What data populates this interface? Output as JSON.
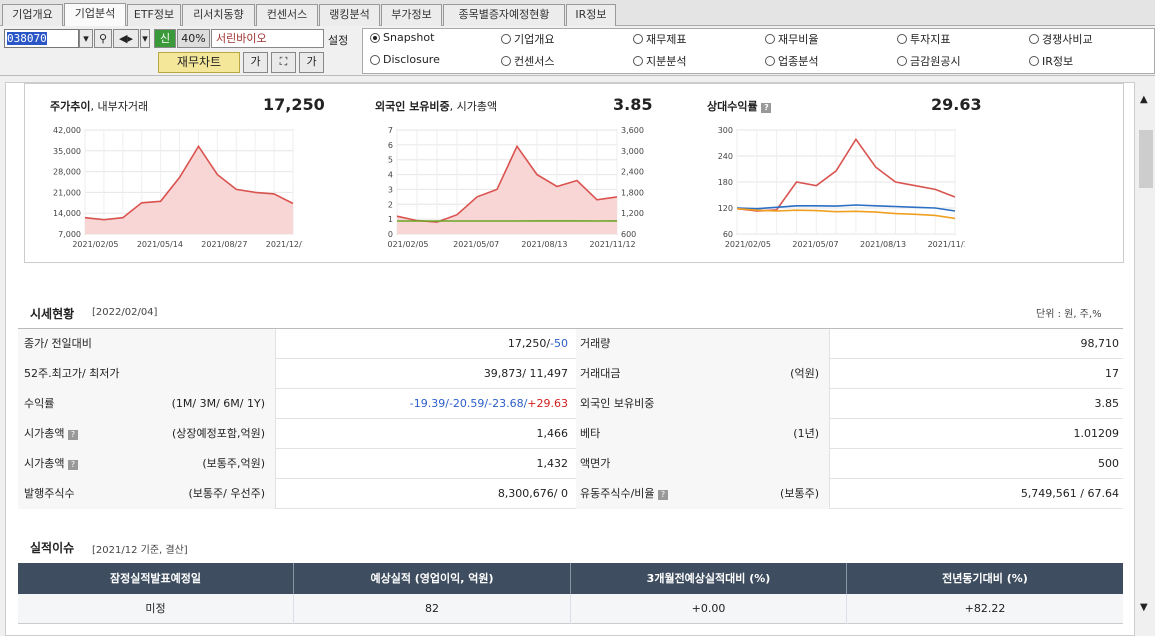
{
  "tabs": [
    "기업개요",
    "기업분석",
    "ETF정보",
    "리서치동향",
    "컨센서스",
    "랭킹분석",
    "부가정보",
    "종목별증자예정현황",
    "IR정보"
  ],
  "toolbar": {
    "code": "038070",
    "sin": "신",
    "percent": "40%",
    "stock_name": "서린바이오",
    "settings": "설정",
    "fin_chart": "재무차트"
  },
  "radios": [
    "Snapshot",
    "기업개요",
    "재무제표",
    "재무비율",
    "투자지표",
    "경쟁사비교",
    "Disclosure",
    "컨센서스",
    "지분분석",
    "업종분석",
    "금감원공시",
    "IR정보"
  ],
  "charts": {
    "price": {
      "title": "주가추이",
      "sub": ", 내부자거래",
      "value": "17,250"
    },
    "foreign": {
      "title": "외국인 보유비중",
      "sub": ", 시가총액",
      "value": "3.85"
    },
    "relative": {
      "title": "상대수익률",
      "value": "29.63"
    }
  },
  "chart_data": [
    {
      "type": "area",
      "title": "주가추이, 내부자거래",
      "x": [
        "2021/02/05",
        "2021/03/05",
        "2021/04/05",
        "2021/05/14",
        "2021/06/14",
        "2021/07/14",
        "2021/08/27",
        "2021/09/27",
        "2021/10/27",
        "2021/12/10",
        "2022/01/10",
        "2022/02/04"
      ],
      "values": [
        12500,
        11800,
        12500,
        17500,
        18000,
        26000,
        36500,
        27000,
        22000,
        21000,
        20500,
        17250
      ],
      "ylim": [
        7000,
        42000
      ],
      "yticks": [
        "42,000",
        "35,000",
        "28,000",
        "21,000",
        "14,000",
        "7,000"
      ],
      "xticks": [
        "2021/02/05",
        "2021/05/14",
        "2021/08/27",
        "2021/12/10"
      ]
    },
    {
      "type": "line",
      "title": "외국인 보유비중, 시가총액",
      "x": [
        "2021/02/05",
        "2021/03/05",
        "2021/04/05",
        "2021/05/07",
        "2021/06/07",
        "2021/07/07",
        "2021/08/13",
        "2021/09/13",
        "2021/10/13",
        "2021/11/12",
        "2021/12/12",
        "2022/02/04"
      ],
      "series": [
        {
          "values": [
            1.2,
            0.9,
            0.8,
            1.3,
            2.5,
            3.0,
            5.9,
            4.0,
            3.2,
            3.6,
            2.3,
            2.5
          ]
        },
        {
          "values": [
            1.5,
            0.8,
            0.9,
            1.1,
            1.3,
            2.0,
            2.1,
            6.0,
            2.5,
            2.4,
            2.0,
            3.85
          ]
        }
      ],
      "ylim": [
        0,
        7
      ],
      "y2lim": [
        600,
        3600
      ],
      "yticks": [
        "7",
        "6",
        "5",
        "4",
        "3",
        "2",
        "1",
        "0"
      ],
      "y2ticks": [
        "3,600",
        "3,000",
        "2,400",
        "1,800",
        "1,200",
        "600"
      ],
      "xticks": [
        "021/02/05",
        "2021/05/07",
        "2021/08/13",
        "2021/11/12"
      ]
    },
    {
      "type": "line",
      "title": "상대수익률",
      "x": [
        "2021/02/05",
        "2021/03/05",
        "2021/04/05",
        "2021/05/07",
        "2021/06/07",
        "2021/07/07",
        "2021/08/13",
        "2021/09/13",
        "2021/10/13",
        "2021/11/12",
        "2021/12/12",
        "2022/02/04"
      ],
      "series": [
        {
          "values": [
            98,
            92,
            95,
            170,
            160,
            200,
            285,
            210,
            170,
            160,
            150,
            129.63
          ]
        },
        {
          "values": [
            100,
            98,
            102,
            106,
            106,
            105,
            108,
            106,
            104,
            102,
            100,
            92
          ]
        },
        {
          "values": [
            98,
            94,
            92,
            94,
            93,
            90,
            91,
            89,
            85,
            83,
            80,
            72
          ]
        }
      ],
      "ylim": [
        30,
        310
      ],
      "yticks": [
        "300",
        "240",
        "180",
        "120",
        "60"
      ],
      "xticks": [
        "2021/02/05",
        "2021/05/07",
        "2021/08/13",
        "2021/11/12"
      ]
    }
  ],
  "market": {
    "title": "시세현황",
    "date": "[2022/02/04]",
    "unit": "단위 : 원, 주,%",
    "rows": [
      {
        "l1": "종가/ 전일대비",
        "d1": "",
        "v1a": "17,250/",
        "v1b": "-50",
        "l2": "거래량",
        "d2": "",
        "v2": "98,710"
      },
      {
        "l1": "52주.최고가/ 최저가",
        "d1": "",
        "v1a": "39,873/ 11,497",
        "v1b": "",
        "l2": "거래대금",
        "d2": "(억원)",
        "v2": "17"
      },
      {
        "l1": "수익률",
        "d1": "(1M/ 3M/ 6M/ 1Y)",
        "v1a": "",
        "v1b": "",
        "l2": "외국인 보유비중",
        "d2": "",
        "v2": "3.85"
      },
      {
        "l1": "시가총액",
        "d1": "(상장예정포함,억원)",
        "v1a": "1,466",
        "v1b": "",
        "l2": "베타",
        "d2": "(1년)",
        "v2": "1.01209"
      },
      {
        "l1": "시가총액",
        "d1": "(보통주,억원)",
        "v1a": "1,432",
        "v1b": "",
        "l2": "액면가",
        "d2": "",
        "v2": "500"
      },
      {
        "l1": "발행주식수",
        "d1": "(보통주/ 우선주)",
        "v1a": "8,300,676/ 0",
        "v1b": "",
        "l2": "유동주식수/비율",
        "d2": "(보통주)",
        "v2": "5,749,561 / 67.64"
      }
    ],
    "returns": {
      "m1": "-19.39/",
      "m3": "-20.59/",
      "m6": "-23.68/",
      "y1": "+29.63"
    }
  },
  "earnings": {
    "title": "실적이슈",
    "date": "[2021/12 기준, 결산]",
    "headers": [
      "잠정실적발표예정일",
      "예상실적 (영업이익, 억원)",
      "3개월전예상실적대비 (%)",
      "전년동기대비 (%)"
    ],
    "row": [
      "미정",
      "82",
      "+0.00",
      "+82.22"
    ]
  }
}
